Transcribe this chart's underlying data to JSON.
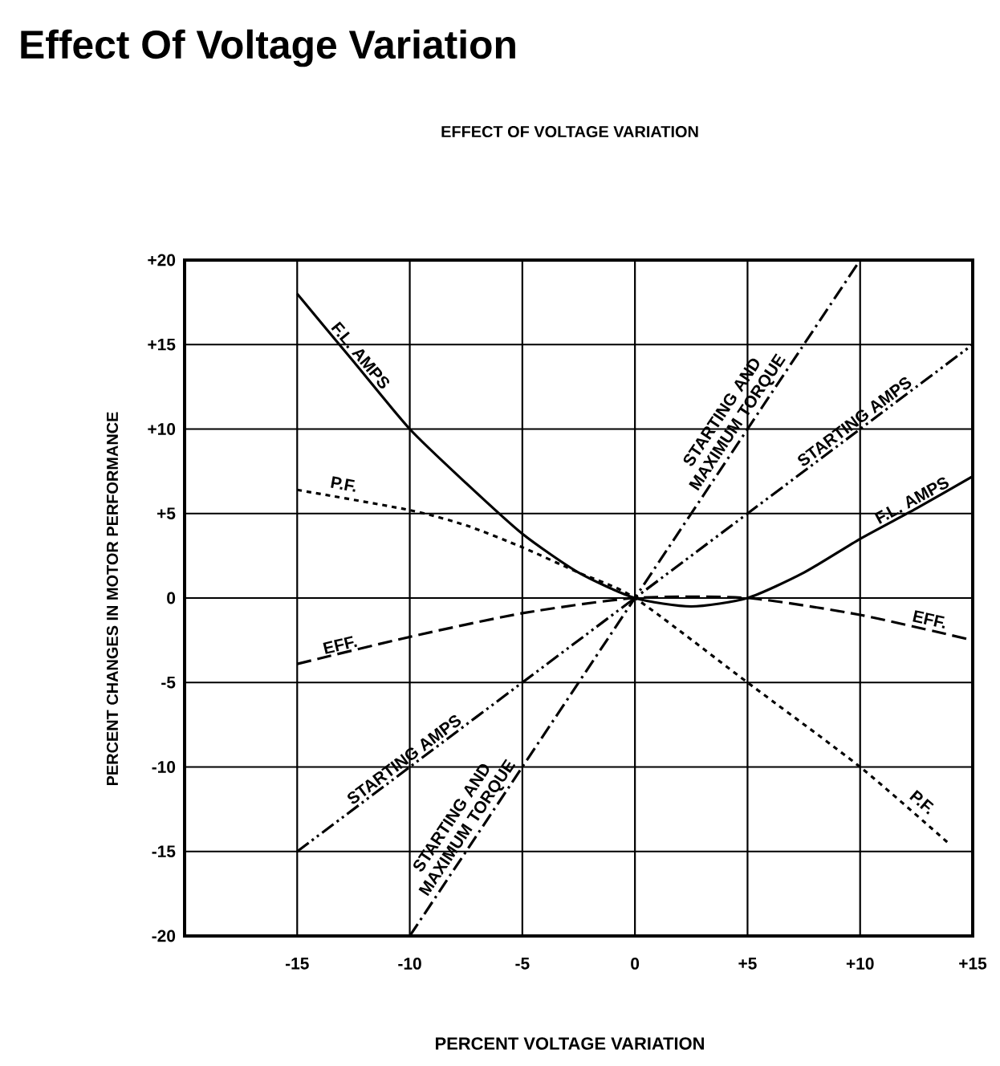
{
  "chart_data": {
    "type": "line",
    "title": "Effect Of Voltage Variation",
    "subtitle": "EFFECT OF VOLTAGE VARIATION",
    "xlabel": "PERCENT VOLTAGE VARIATION",
    "ylabel": "PERCENT CHANGES IN MOTOR PERFORMANCE",
    "xlim": [
      -20,
      15
    ],
    "ylim": [
      -20,
      20
    ],
    "xticks": [
      -15,
      -10,
      -5,
      0,
      {
        "value": 5,
        "label": "+5"
      },
      {
        "value": 10,
        "label": "+10"
      },
      {
        "value": 15,
        "label": "+15"
      }
    ],
    "yticks": [
      {
        "value": 20,
        "label": "+20"
      },
      {
        "value": 15,
        "label": "+15"
      },
      {
        "value": 10,
        "label": "+10"
      },
      {
        "value": 5,
        "label": "+5"
      },
      0,
      -5,
      -10,
      -15,
      -20
    ],
    "grid": true,
    "marker": "none",
    "series": [
      {
        "color": "#000000",
        "line_style": "solid",
        "x": [
          -15,
          -12.5,
          -10,
          -7.5,
          -5,
          -2.5,
          0,
          2.5,
          5,
          7.5,
          10,
          12.5,
          15
        ],
        "values": [
          18,
          14,
          10,
          6.8,
          3.8,
          1.5,
          0,
          -0.5,
          0,
          1.5,
          3.5,
          5.3,
          7.2
        ]
      },
      {
        "color": "#000000",
        "line_style": "dotted",
        "x": [
          -15,
          -10,
          -7.5,
          -5,
          -2.5,
          0,
          5,
          10,
          14
        ],
        "values": [
          6.4,
          5.2,
          4.3,
          3,
          1.5,
          0,
          -5,
          -10,
          -14.6
        ]
      },
      {
        "color": "#000000",
        "line_style": "dashed",
        "x": [
          -15,
          -10,
          -5,
          0,
          5,
          10,
          15
        ],
        "values": [
          -3.9,
          -2.3,
          -0.9,
          0,
          0,
          -1,
          -2.5
        ]
      },
      {
        "color": "#000000",
        "line_style": "dashdotdot",
        "x": [
          -15,
          0,
          15
        ],
        "values": [
          -15,
          0,
          15
        ]
      },
      {
        "color": "#000000",
        "line_style": "dashdot",
        "x": [
          -10,
          0,
          10
        ],
        "values": [
          -20,
          0,
          20
        ]
      }
    ],
    "annotations": [
      {
        "text": "F.L. AMPS",
        "x": -12.5,
        "y": 14
      },
      {
        "text": "F.L. AMPS",
        "x": 12.5,
        "y": 5.3
      },
      {
        "text": "P.F.",
        "x": -13,
        "y": 6.2
      },
      {
        "text": "P.F.",
        "x": 12.5,
        "y": -12.5
      },
      {
        "text": "EFF.",
        "x": -13,
        "y": -3.3
      },
      {
        "text": "EFF.",
        "x": 13,
        "y": -1.8
      },
      {
        "text": "STARTING AMPS",
        "x": -10,
        "y": -10
      },
      {
        "text": "STARTING AMPS",
        "x": 10,
        "y": 10
      },
      {
        "text": "STARTING AND MAXIMUM TORQUE",
        "x": -7,
        "y": -14
      },
      {
        "text": "STARTING AND MAXIMUM TORQUE",
        "x": 5,
        "y": 10
      }
    ]
  }
}
